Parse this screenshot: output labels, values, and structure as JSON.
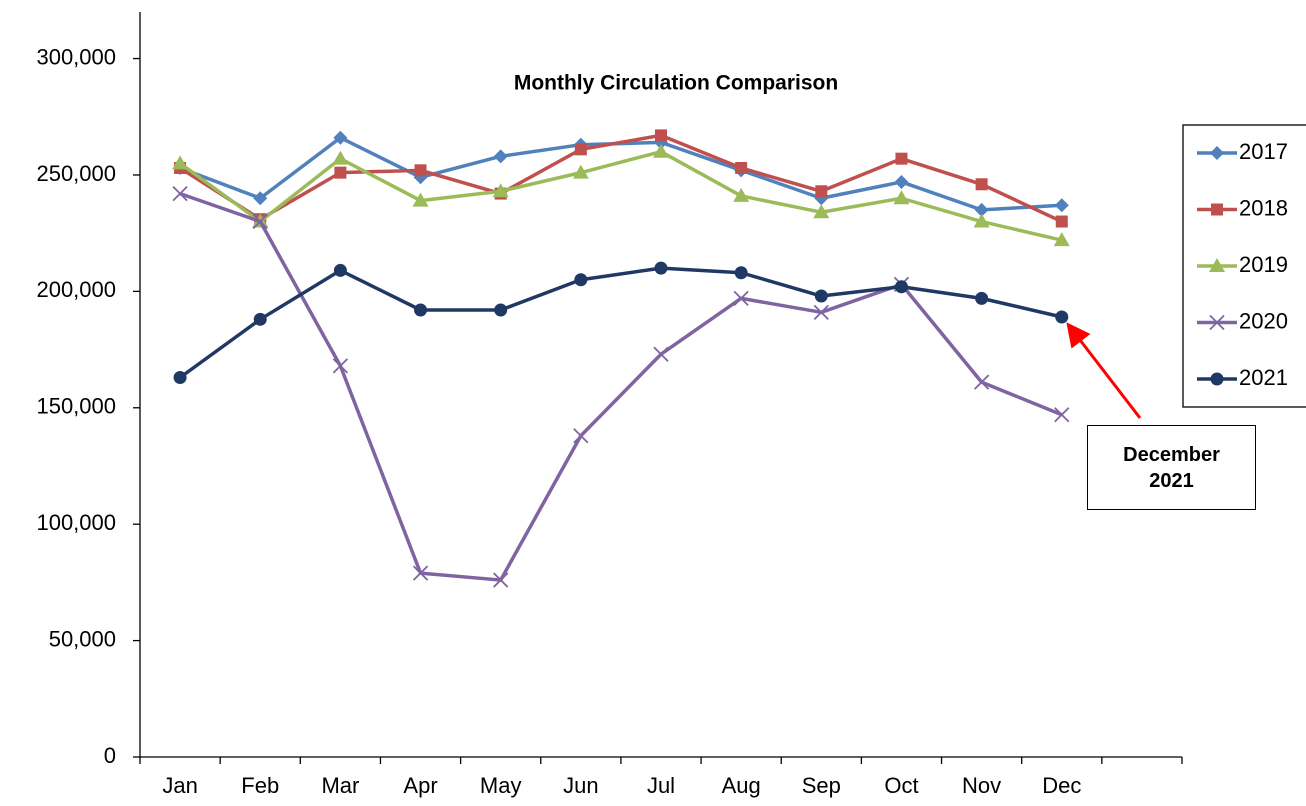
{
  "chart_data": {
    "type": "line",
    "title": "Monthly Circulation Comparison",
    "categories": [
      "Jan",
      "Feb",
      "Mar",
      "Apr",
      "May",
      "Jun",
      "Jul",
      "Aug",
      "Sep",
      "Oct",
      "Nov",
      "Dec",
      null
    ],
    "series": [
      {
        "name": "2017",
        "color": "#4f81bd",
        "marker": "diamond",
        "values": [
          253000,
          240000,
          266000,
          249000,
          258000,
          263000,
          264000,
          252000,
          240000,
          247000,
          235000,
          237000,
          null
        ]
      },
      {
        "name": "2018",
        "color": "#c0504d",
        "marker": "square",
        "values": [
          253000,
          231000,
          251000,
          252000,
          242000,
          261000,
          267000,
          253000,
          243000,
          257000,
          246000,
          230000,
          null
        ]
      },
      {
        "name": "2019",
        "color": "#9bbb59",
        "marker": "triangle",
        "values": [
          255000,
          230000,
          257000,
          239000,
          243000,
          251000,
          260000,
          241000,
          234000,
          240000,
          230000,
          222000,
          null
        ]
      },
      {
        "name": "2020",
        "color": "#8064a2",
        "marker": "x",
        "values": [
          242000,
          230000,
          168000,
          79000,
          76000,
          138000,
          173000,
          197000,
          191000,
          203000,
          161000,
          147000,
          null
        ]
      },
      {
        "name": "2021",
        "color": "#1f3864",
        "marker": "circle",
        "values": [
          163000,
          188000,
          209000,
          192000,
          192000,
          205000,
          210000,
          208000,
          198000,
          202000,
          197000,
          189000,
          null
        ]
      }
    ],
    "ylim": [
      0,
      320000
    ],
    "yticks": [
      0,
      {
        "value": 50000,
        "label": "50,000"
      },
      {
        "value": 100000,
        "label": "100,000"
      },
      {
        "value": 150000,
        "label": "150,000"
      },
      {
        "value": 200000,
        "label": "200,000"
      },
      {
        "value": 250000,
        "label": "250,000"
      },
      {
        "value": 300000,
        "label": "300,000"
      }
    ],
    "grid": false,
    "legend": "right",
    "annotation": "December 2021"
  }
}
